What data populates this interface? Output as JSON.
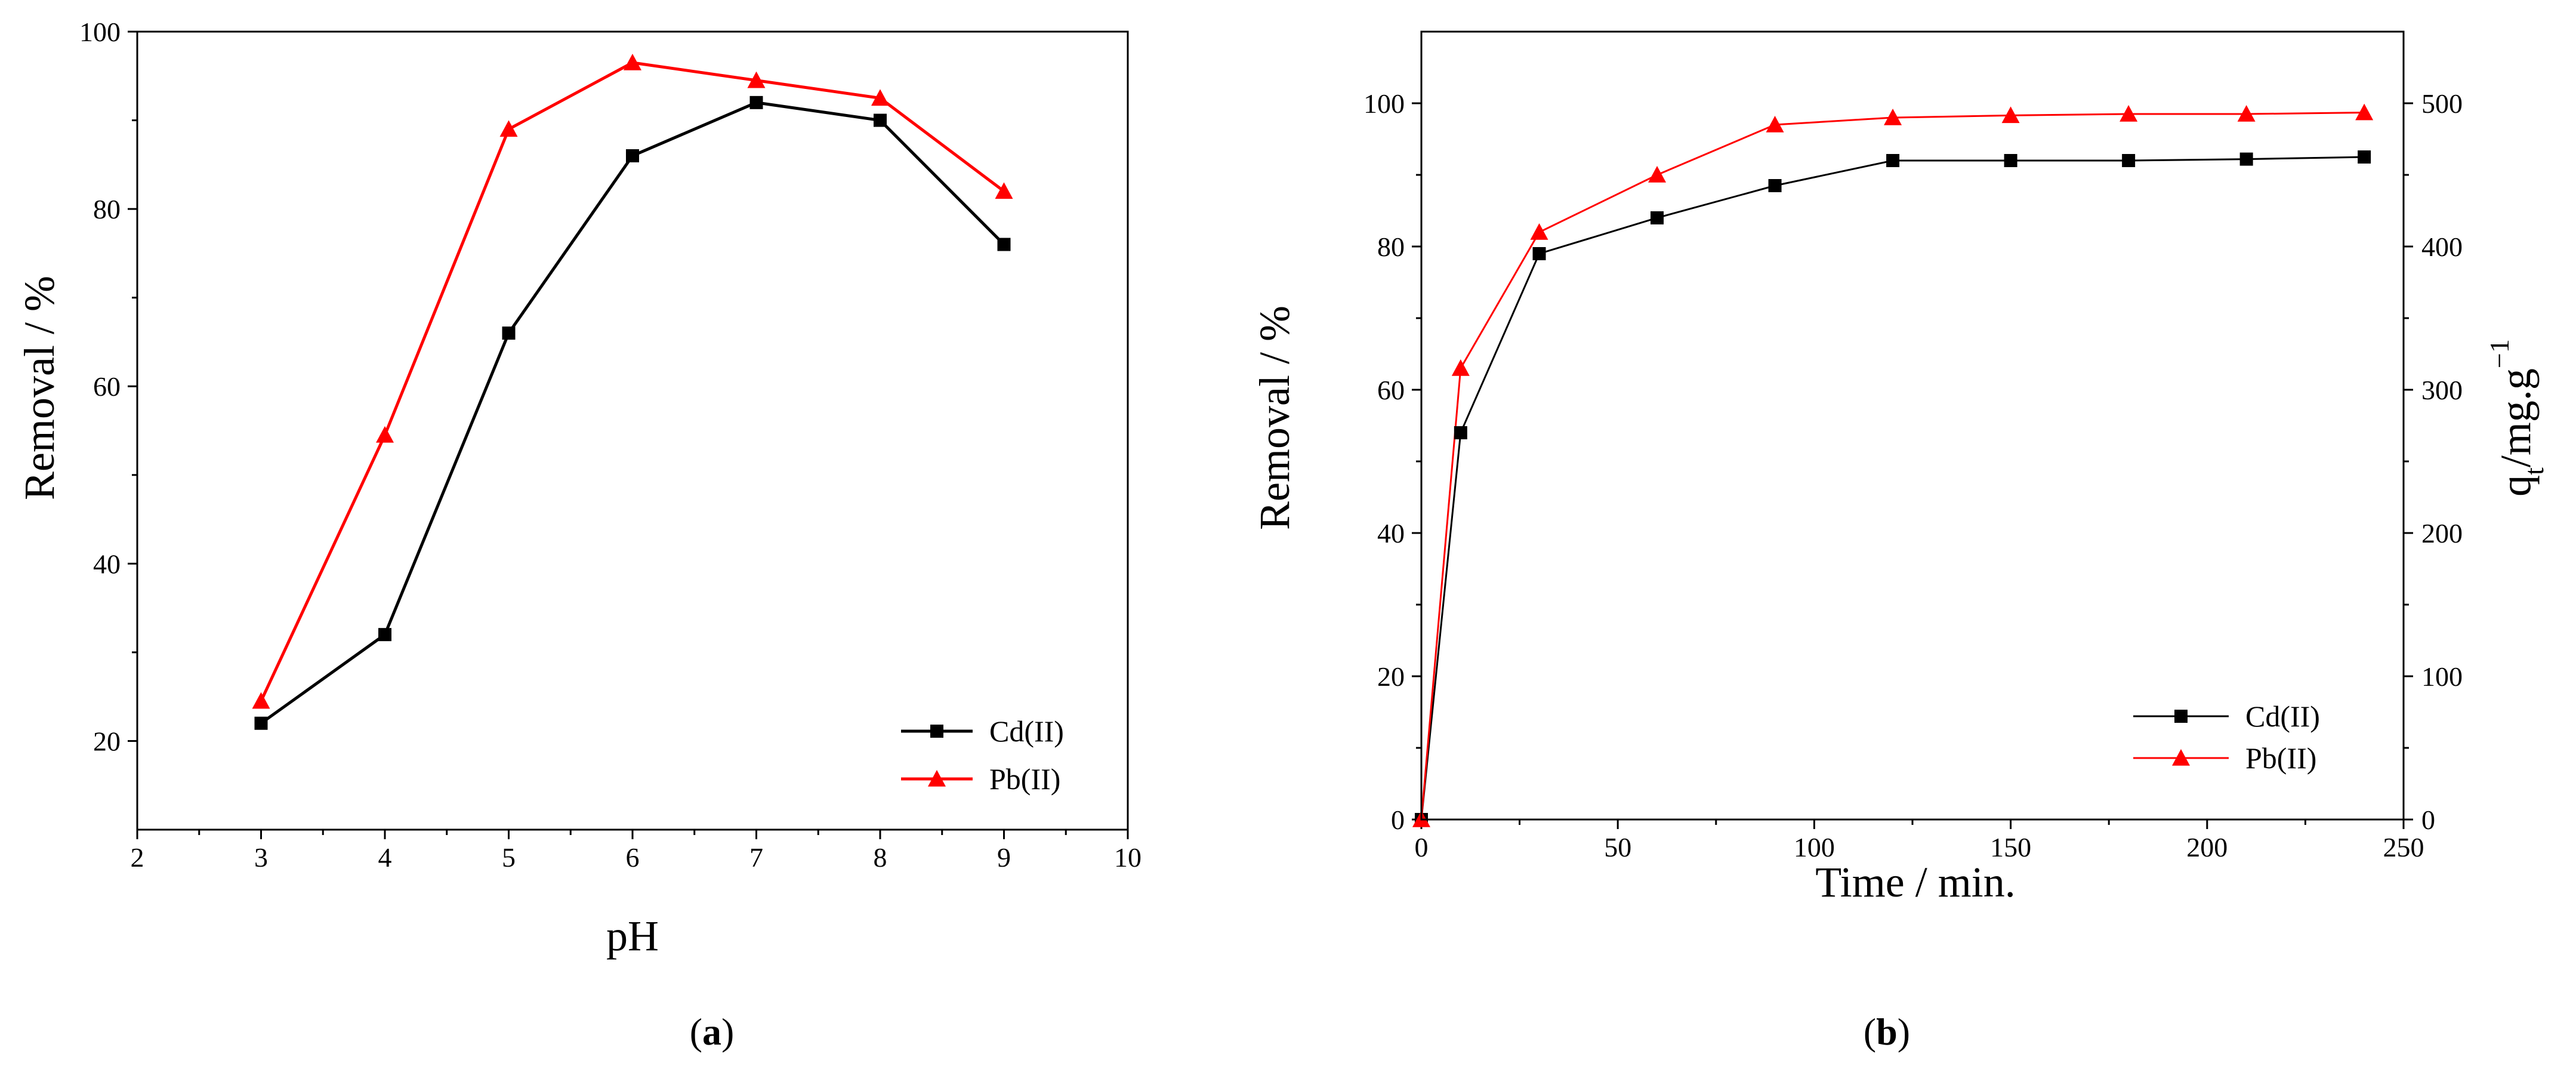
{
  "chart_data": [
    {
      "type": "line",
      "caption_letter": "a",
      "xlabel": "pH",
      "ylabel": "Removal / %",
      "xlim": [
        2,
        10
      ],
      "ylim": [
        10,
        100
      ],
      "xticks": [
        2,
        3,
        4,
        5,
        6,
        7,
        8,
        9,
        10
      ],
      "yticks": [
        20,
        40,
        60,
        80,
        100
      ],
      "legend_position": "bottom-right",
      "series": [
        {
          "name": "Cd(II)",
          "color": "#000000",
          "marker": "square",
          "x": [
            3,
            4,
            5,
            6,
            7,
            8,
            9
          ],
          "y": [
            22,
            32,
            66,
            86,
            92,
            90,
            76
          ]
        },
        {
          "name": "Pb(II)",
          "color": "#ff0000",
          "marker": "triangle",
          "x": [
            3,
            4,
            5,
            6,
            7,
            8,
            9
          ],
          "y": [
            24.5,
            54.5,
            89,
            96.5,
            94.5,
            92.5,
            82
          ]
        }
      ]
    },
    {
      "type": "line",
      "caption_letter": "b",
      "xlabel": "Time / min.",
      "ylabel": "Removal / %",
      "y2label_main": "q",
      "y2label_sub": "t",
      "y2label_rest": "/mg.g",
      "y2label_sup": "−1",
      "xlim": [
        0,
        250
      ],
      "ylim": [
        0,
        110
      ],
      "y2lim": [
        0,
        550
      ],
      "xticks": [
        0,
        50,
        100,
        150,
        200,
        250
      ],
      "yticks": [
        0,
        20,
        40,
        60,
        80,
        100
      ],
      "y2ticks": [
        0,
        100,
        200,
        300,
        400,
        500
      ],
      "legend_position": "bottom-right",
      "series": [
        {
          "name": "Cd(II)",
          "color": "#000000",
          "marker": "square",
          "x": [
            0,
            10,
            30,
            60,
            90,
            120,
            150,
            180,
            210,
            240
          ],
          "y": [
            0,
            54,
            79,
            84,
            88.5,
            92,
            92,
            92,
            92.2,
            92.5
          ]
        },
        {
          "name": "Pb(II)",
          "color": "#ff0000",
          "marker": "triangle",
          "x": [
            0,
            10,
            30,
            60,
            90,
            120,
            150,
            180,
            210,
            240
          ],
          "y": [
            0,
            63,
            82,
            90,
            97,
            98,
            98.3,
            98.5,
            98.5,
            98.7
          ]
        }
      ]
    }
  ]
}
